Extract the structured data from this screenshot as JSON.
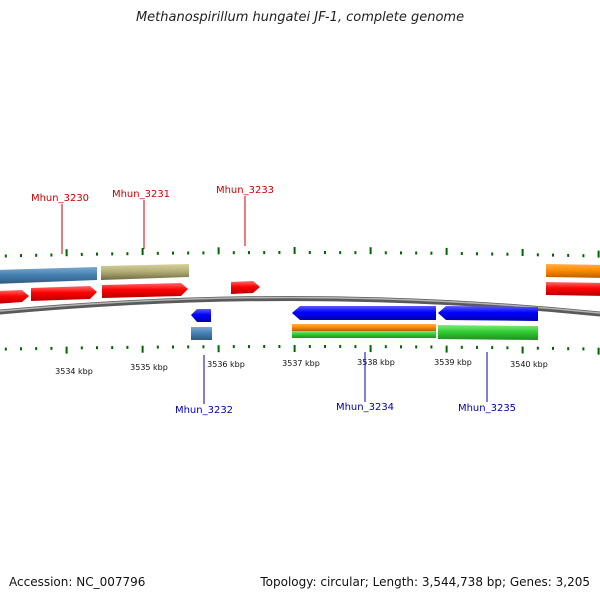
{
  "title": "Methanospirillum hungatei JF-1, complete genome",
  "footer": {
    "accession": "Accession: NC_007796",
    "summary": "Topology: circular; Length: 3,544,738 bp; Genes: 3,205"
  },
  "ticks": [
    {
      "label": "3534 kbp",
      "kbp": 3534
    },
    {
      "label": "3535 kbp",
      "kbp": 3535
    },
    {
      "label": "3536 kbp",
      "kbp": 3536
    },
    {
      "label": "3537 kbp",
      "kbp": 3537
    },
    {
      "label": "3538 kbp",
      "kbp": 3538
    },
    {
      "label": "3539 kbp",
      "kbp": 3539
    },
    {
      "label": "3540 kbp",
      "kbp": 3540
    }
  ],
  "gene_labels": {
    "top": [
      "Mhun_3230",
      "Mhun_3231",
      "Mhun_3233"
    ],
    "bottom": [
      "Mhun_3232",
      "Mhun_3234",
      "Mhun_3235"
    ]
  },
  "colors": {
    "red": "#ff0000",
    "blue": "#0000ff",
    "steelblue": "#4682b4",
    "khaki": "#bdb76b",
    "orange": "#ff8c00",
    "green": "#32cd32",
    "tick": "#006400",
    "top_label": "#cc0000",
    "bottom_label": "#0000aa"
  }
}
